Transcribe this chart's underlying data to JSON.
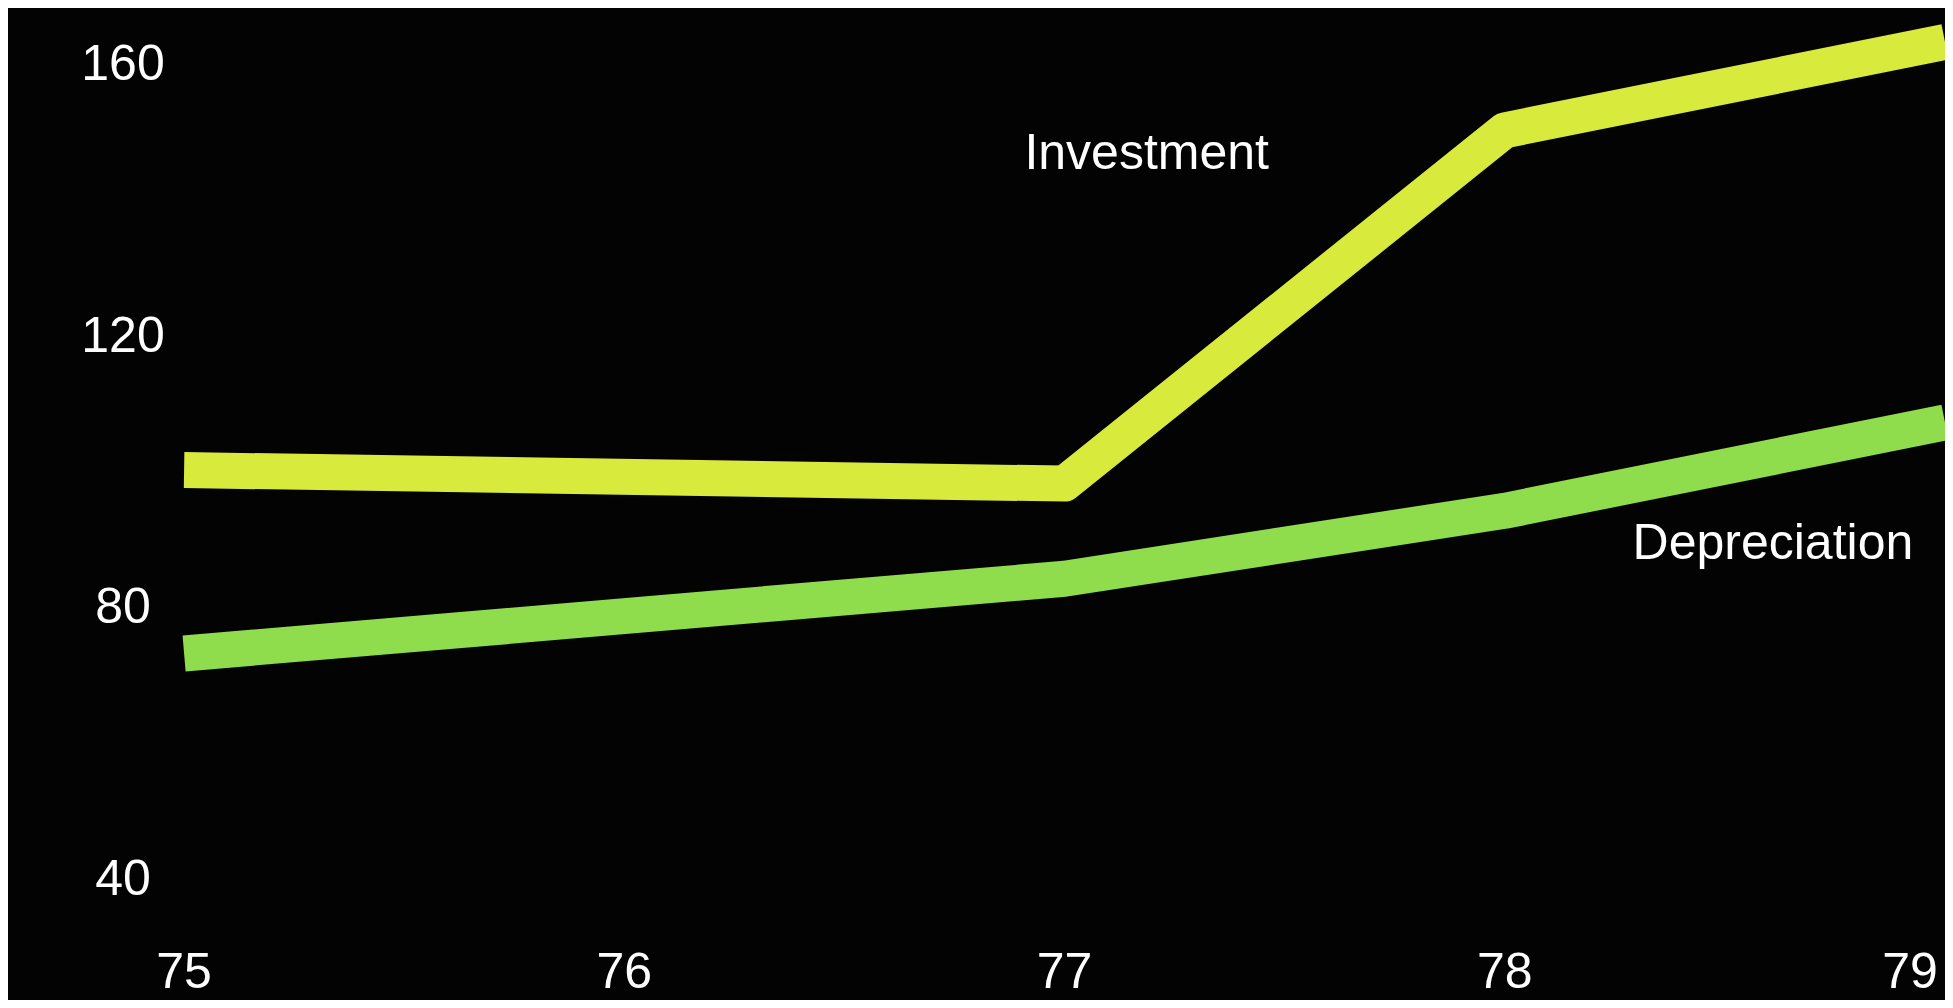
{
  "chart_data": {
    "type": "line",
    "x": [
      75,
      77,
      78,
      79
    ],
    "xlim": [
      74.6,
      79
    ],
    "xticks": [
      75,
      76,
      77,
      78,
      79
    ],
    "ylim": [
      22,
      168
    ],
    "yticks": [
      40,
      80,
      120,
      160
    ],
    "grid": false,
    "line_style": "solid",
    "marker": "none",
    "series": [
      {
        "name": "Investment",
        "color": "#d8ea3c",
        "values": [
          100,
          98,
          150,
          163
        ]
      },
      {
        "name": "Depreciation",
        "color": "#8fdc4c",
        "values": [
          73,
          84,
          94,
          107
        ]
      }
    ]
  }
}
